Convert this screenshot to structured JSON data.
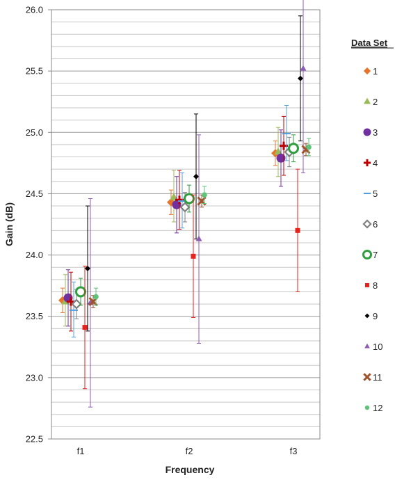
{
  "chart_data": {
    "type": "scatter",
    "title": "",
    "xlabel": "Frequency",
    "ylabel": "Gain  (dB)",
    "categories": [
      "f1",
      "f2",
      "f3"
    ],
    "ylim": [
      22.5,
      26.0
    ],
    "yticks": [
      "22.5",
      "23.0",
      "23.5",
      "24.0",
      "24.5",
      "25.0",
      "25.5",
      "26.0"
    ],
    "grid": true,
    "legend_title": "Data Set",
    "legend_position": "right",
    "series": [
      {
        "name": "1",
        "marker": "diamond",
        "color": "#e8732a",
        "values": [
          23.63,
          24.43,
          24.83
        ],
        "err_low": [
          0.1,
          0.1,
          0.1
        ],
        "err_high": [
          0.1,
          0.1,
          0.1
        ]
      },
      {
        "name": "2",
        "marker": "triangle",
        "color": "#9bbb59",
        "values": [
          23.62,
          24.47,
          24.84
        ],
        "err_low": [
          0.2,
          0.2,
          0.2
        ],
        "err_high": [
          0.22,
          0.22,
          0.2
        ]
      },
      {
        "name": "3",
        "marker": "circle",
        "color": "#7030a0",
        "values": [
          23.65,
          24.41,
          24.79
        ],
        "err_low": [
          0.23,
          0.23,
          0.23
        ],
        "err_high": [
          0.23,
          0.23,
          0.23
        ]
      },
      {
        "name": "4",
        "marker": "plus",
        "color": "#c00000",
        "values": [
          23.62,
          24.45,
          24.89
        ],
        "err_low": [
          0.24,
          0.24,
          0.24
        ],
        "err_high": [
          0.24,
          0.24,
          0.24
        ]
      },
      {
        "name": "5",
        "marker": "dash",
        "color": "#4f9fe0",
        "values": [
          23.55,
          24.44,
          24.99
        ],
        "err_low": [
          0.22,
          0.22,
          0.22
        ],
        "err_high": [
          0.23,
          0.23,
          0.23
        ]
      },
      {
        "name": "6",
        "marker": "diamond-open",
        "color": "#808080",
        "values": [
          23.6,
          24.39,
          24.84
        ],
        "err_low": [
          0.12,
          0.12,
          0.12
        ],
        "err_high": [
          0.12,
          0.12,
          0.12
        ]
      },
      {
        "name": "7",
        "marker": "circle-open",
        "color": "#2e9e3e",
        "values": [
          23.7,
          24.46,
          24.87
        ],
        "err_low": [
          0.11,
          0.11,
          0.11
        ],
        "err_high": [
          0.11,
          0.11,
          0.11
        ]
      },
      {
        "name": "8",
        "marker": "square",
        "color": "#e8221c",
        "values": [
          23.41,
          23.99,
          24.2
        ],
        "err_low": [
          0.5,
          0.5,
          0.5
        ],
        "err_high": [
          0.5,
          0.5,
          0.5
        ]
      },
      {
        "name": "9",
        "marker": "diamond-small",
        "color": "#000000",
        "values": [
          23.89,
          24.64,
          25.44
        ],
        "err_low": [
          0.51,
          0.51,
          0.51
        ],
        "err_high": [
          0.51,
          0.51,
          0.51
        ]
      },
      {
        "name": "10",
        "marker": "triangle-small",
        "color": "#8e5bb5",
        "values": [
          23.61,
          24.13,
          25.52
        ],
        "err_low": [
          0.85,
          0.85,
          0.85
        ],
        "err_high": [
          0.85,
          0.85,
          0.85
        ]
      },
      {
        "name": "11",
        "marker": "x",
        "color": "#a0522d",
        "values": [
          23.62,
          24.44,
          24.86
        ],
        "err_low": [
          0.05,
          0.05,
          0.05
        ],
        "err_high": [
          0.05,
          0.05,
          0.05
        ]
      },
      {
        "name": "12",
        "marker": "circle-small",
        "color": "#5ec47a",
        "values": [
          23.66,
          24.49,
          24.88
        ],
        "err_low": [
          0.07,
          0.07,
          0.07
        ],
        "err_high": [
          0.07,
          0.07,
          0.07
        ]
      }
    ]
  }
}
